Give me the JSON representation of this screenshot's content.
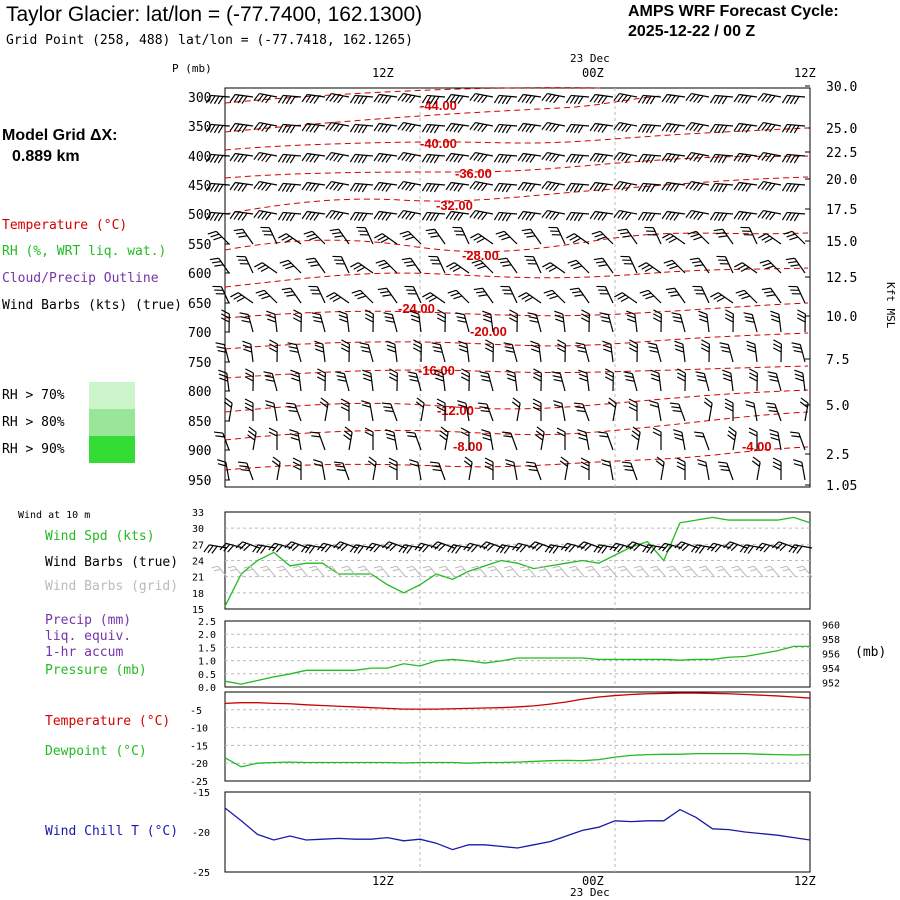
{
  "header": {
    "title": "Taylor Glacier:  lat/lon = (-77.7400, 162.1300)",
    "grid_point": "Grid Point (258, 488) lat/lon = (-77.7418, 162.1265)",
    "cycle_line1": "AMPS WRF Forecast Cycle:",
    "cycle_line2": "2025-12-22 / 00  Z"
  },
  "model": {
    "label": "Model Grid ΔX:",
    "value": "0.889 km"
  },
  "legend": {
    "temperature": "Temperature (°C)",
    "rh": "RH (%, WRT liq. wat.)",
    "cloud": "Cloud/Precip Outline",
    "wind_barbs": "Wind Barbs (kts) (true)",
    "rh70": "RH > 70%",
    "rh80": "RH > 80%",
    "rh90": "RH > 90%",
    "rh70_color": "#ccf5cc",
    "rh80_color": "#99e699",
    "rh90_color": "#33dd33"
  },
  "colors": {
    "temp": "#d40000",
    "green": "#22bb22",
    "purple": "#7733aa",
    "blue": "#1a1aaa",
    "grid": "#bbbbbb"
  },
  "time_axis": {
    "date_label": "23 Dec",
    "labels": [
      "12Z",
      "00Z",
      "12Z"
    ]
  },
  "cross_section": {
    "p_label": "P (mb)",
    "right_label": "Kft MSL",
    "chart_data": {
      "type": "contour",
      "pressure_ticks": [
        "300",
        "350",
        "400",
        "450",
        "500",
        "550",
        "600",
        "650",
        "700",
        "750",
        "800",
        "850",
        "900",
        "950"
      ],
      "height_ticks": [
        "30.0",
        "25.0",
        "22.5",
        "20.0",
        "17.5",
        "15.0",
        "12.5",
        "10.0",
        "7.5",
        "5.0",
        "2.5",
        "1.05"
      ],
      "temp_contours": [
        "-44.00",
        "-40.00",
        "-36.00",
        "-32.00",
        "-28.00",
        "-24.00",
        "-20.00",
        "-16.00",
        "-12.00",
        "-8.00",
        "-4.00"
      ]
    }
  },
  "wind_panel": {
    "title": "Wind at 10 m",
    "spd_label": "Wind Spd (kts)",
    "barbs_true": "Wind Barbs (true)",
    "barbs_grid": "Wind Barbs (grid)",
    "chart_data": {
      "type": "line",
      "ylim": [
        15,
        33
      ],
      "y_ticks": [
        "33",
        "30",
        "27",
        "24",
        "21",
        "18",
        "15"
      ],
      "x_hours": [
        0,
        1,
        2,
        3,
        4,
        5,
        6,
        7,
        8,
        9,
        10,
        11,
        12,
        13,
        14,
        15,
        16,
        17,
        18,
        19,
        20,
        21,
        22,
        23,
        24,
        25,
        26,
        27,
        28,
        29,
        30,
        31,
        32,
        33,
        34,
        35,
        36
      ],
      "wind_speed_kts": [
        15.5,
        21.5,
        24.0,
        25.5,
        23.0,
        23.5,
        23.5,
        21.5,
        21.5,
        21.5,
        19.5,
        18.0,
        19.5,
        21.5,
        20.5,
        22.0,
        23.0,
        24.0,
        23.5,
        22.5,
        23.0,
        23.5,
        24.0,
        23.5,
        25.0,
        26.5,
        27.5,
        24.0,
        31.0,
        31.5,
        32.0,
        31.5,
        31.5,
        31.5,
        31.5,
        32.0,
        31.0
      ]
    }
  },
  "precip_panel": {
    "precip_label": "Precip (mm)",
    "liq_label": "liq. equiv.",
    "accum_label": "1-hr accum",
    "pressure_label": "Pressure (mb)",
    "mb_unit": "(mb)",
    "chart_data": {
      "type": "line",
      "left_ylim": [
        0.0,
        2.5
      ],
      "left_ticks": [
        "2.5",
        "2.0",
        "1.5",
        "1.0",
        "0.5",
        "0.0"
      ],
      "right_ylim": [
        951.4,
        960.5
      ],
      "right_ticks": [
        "960",
        "958",
        "956",
        "954",
        "952"
      ],
      "pressure_mb": [
        952.2,
        951.8,
        952.3,
        952.8,
        953.2,
        953.7,
        953.7,
        953.7,
        953.7,
        954.0,
        954.0,
        954.6,
        954.3,
        955.0,
        955.2,
        955.0,
        954.7,
        955.0,
        955.4,
        955.4,
        955.4,
        955.4,
        955.4,
        955.2,
        955.2,
        955.2,
        955.2,
        955.2,
        955.1,
        955.2,
        955.2,
        955.5,
        955.6,
        956.0,
        956.4,
        957.0,
        957.0
      ]
    }
  },
  "temp_panel": {
    "temp_label": "Temperature (°C)",
    "dew_label": "Dewpoint (°C)",
    "chart_data": {
      "type": "line",
      "ylim": [
        -25,
        0
      ],
      "y_ticks": [
        "-5",
        "-10",
        "-15",
        "-20",
        "-25"
      ],
      "temperature_c": [
        -3.2,
        -3.0,
        -3.0,
        -3.2,
        -3.3,
        -3.6,
        -3.8,
        -4.0,
        -4.2,
        -4.4,
        -4.6,
        -4.8,
        -4.8,
        -4.8,
        -4.7,
        -4.6,
        -4.5,
        -4.4,
        -4.2,
        -3.9,
        -3.4,
        -2.8,
        -2.0,
        -1.4,
        -1.0,
        -0.7,
        -0.5,
        -0.4,
        -0.3,
        -0.3,
        -0.4,
        -0.5,
        -0.7,
        -0.9,
        -1.1,
        -1.4,
        -1.7
      ],
      "dewpoint_c": [
        -18.5,
        -21.0,
        -20.0,
        -19.8,
        -19.7,
        -19.8,
        -19.8,
        -19.8,
        -19.8,
        -19.8,
        -19.8,
        -19.9,
        -19.8,
        -19.8,
        -19.8,
        -20.0,
        -19.8,
        -19.8,
        -19.7,
        -19.5,
        -19.3,
        -19.2,
        -19.3,
        -19.0,
        -18.3,
        -17.8,
        -17.6,
        -17.5,
        -17.5,
        -17.3,
        -17.3,
        -17.3,
        -17.3,
        -17.5,
        -17.6,
        -17.7,
        -17.6
      ]
    }
  },
  "chill_panel": {
    "label": "Wind Chill T (°C)",
    "chart_data": {
      "type": "line",
      "ylim": [
        -25,
        -15
      ],
      "y_ticks": [
        "-15",
        "-20",
        "-25"
      ],
      "wind_chill_c": [
        -17.0,
        -18.6,
        -20.3,
        -21.0,
        -20.5,
        -21.0,
        -20.9,
        -20.8,
        -20.9,
        -20.9,
        -20.7,
        -21.1,
        -20.9,
        -21.4,
        -22.2,
        -21.6,
        -21.6,
        -21.8,
        -22.0,
        -21.6,
        -21.2,
        -20.5,
        -19.8,
        -19.4,
        -18.6,
        -18.7,
        -18.6,
        -18.6,
        -17.2,
        -18.2,
        -19.6,
        -19.7,
        -20.0,
        -20.2,
        -20.4,
        -20.7,
        -21.0
      ]
    }
  }
}
